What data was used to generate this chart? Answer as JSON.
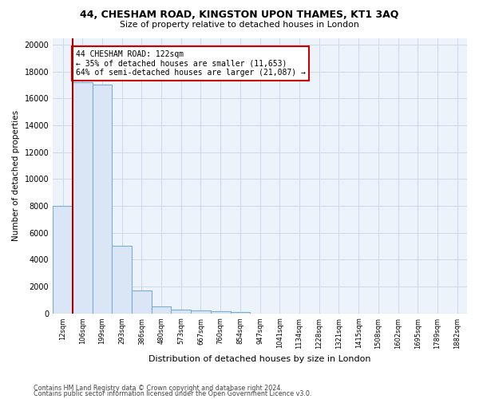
{
  "title_main": "44, CHESHAM ROAD, KINGSTON UPON THAMES, KT1 3AQ",
  "title_sub": "Size of property relative to detached houses in London",
  "xlabel": "Distribution of detached houses by size in London",
  "ylabel": "Number of detached properties",
  "categories": [
    "12sqm",
    "106sqm",
    "199sqm",
    "293sqm",
    "386sqm",
    "480sqm",
    "573sqm",
    "667sqm",
    "760sqm",
    "854sqm",
    "947sqm",
    "1041sqm",
    "1134sqm",
    "1228sqm",
    "1321sqm",
    "1415sqm",
    "1508sqm",
    "1602sqm",
    "1695sqm",
    "1789sqm",
    "1882sqm"
  ],
  "bar_heights": [
    8000,
    17200,
    17000,
    5000,
    1700,
    500,
    300,
    200,
    150,
    100,
    0,
    0,
    0,
    0,
    0,
    0,
    0,
    0,
    0,
    0,
    0
  ],
  "bar_color": "#dae6f5",
  "bar_edge_color": "#7aafd4",
  "vline_x_index": 1,
  "vline_color": "#aa0000",
  "annotation_text": "44 CHESHAM ROAD: 122sqm\n← 35% of detached houses are smaller (11,653)\n64% of semi-detached houses are larger (21,087) →",
  "annotation_box_color": "#ffffff",
  "annotation_box_edge": "#cc0000",
  "ylim": [
    0,
    20500
  ],
  "yticks": [
    0,
    2000,
    4000,
    6000,
    8000,
    10000,
    12000,
    14000,
    16000,
    18000,
    20000
  ],
  "footer_line1": "Contains HM Land Registry data © Crown copyright and database right 2024.",
  "footer_line2": "Contains public sector information licensed under the Open Government Licence v3.0.",
  "bg_color": "#ffffff",
  "grid_color": "#c5d5e8",
  "fig_width": 6.0,
  "fig_height": 5.0,
  "dpi": 100
}
